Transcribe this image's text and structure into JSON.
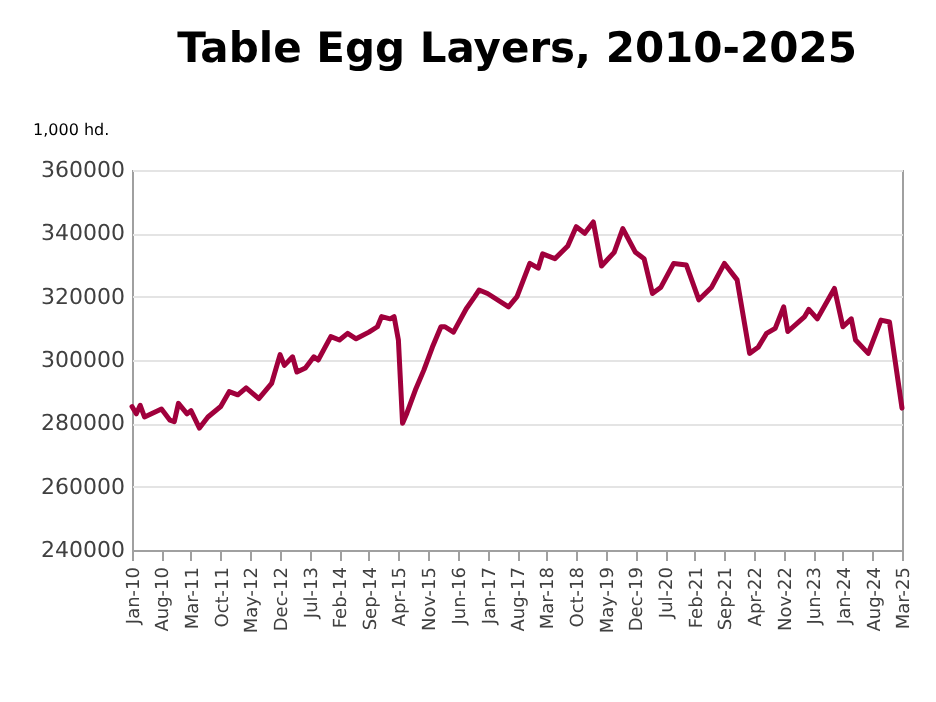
{
  "chart_data": {
    "type": "line",
    "title": "Table Egg Layers, 2010-2025",
    "ylabel": "1,000 hd.",
    "x": [
      "2010-01",
      "2010-02",
      "2010-03",
      "2010-04",
      "2010-08",
      "2010-10",
      "2010-11",
      "2010-12",
      "2011-02",
      "2011-03",
      "2011-05",
      "2011-07",
      "2011-10",
      "2011-12",
      "2012-02",
      "2012-04",
      "2012-07",
      "2012-10",
      "2012-12",
      "2013-01",
      "2013-03",
      "2013-04",
      "2013-06",
      "2013-08",
      "2013-09",
      "2013-12",
      "2014-02",
      "2014-04",
      "2014-06",
      "2014-09",
      "2014-11",
      "2014-12",
      "2015-02",
      "2015-03",
      "2015-04",
      "2015-05",
      "2015-06",
      "2015-08",
      "2015-10",
      "2015-12",
      "2016-02",
      "2016-03",
      "2016-05",
      "2016-08",
      "2016-10",
      "2016-11",
      "2017-01",
      "2017-06",
      "2017-08",
      "2017-11",
      "2018-01",
      "2018-02",
      "2018-05",
      "2018-08",
      "2018-10",
      "2018-12",
      "2019-02",
      "2019-04",
      "2019-07",
      "2019-09",
      "2019-12",
      "2020-02",
      "2020-04",
      "2020-06",
      "2020-09",
      "2020-12",
      "2021-03",
      "2021-06",
      "2021-09",
      "2021-12",
      "2022-03",
      "2022-05",
      "2022-07",
      "2022-09",
      "2022-11",
      "2022-12",
      "2023-04",
      "2023-05",
      "2023-07",
      "2023-11",
      "2024-01",
      "2024-03",
      "2024-04",
      "2024-07",
      "2024-10",
      "2024-12",
      "2025-03"
    ],
    "series": [
      {
        "color": "#a0003c",
        "values": [
          285300,
          283000,
          285700,
          282000,
          284500,
          281000,
          280500,
          286300,
          283000,
          284000,
          278500,
          282000,
          285300,
          290000,
          289000,
          291200,
          287800,
          292600,
          301700,
          298300,
          301000,
          296200,
          297500,
          301000,
          300000,
          307400,
          306300,
          308400,
          306700,
          308800,
          310500,
          313700,
          313000,
          313700,
          306300,
          280000,
          283200,
          290500,
          296800,
          304000,
          310500,
          310500,
          308800,
          316200,
          320000,
          322100,
          321000,
          316800,
          320000,
          330500,
          329000,
          333500,
          332000,
          336000,
          342100,
          340000,
          343600,
          329700,
          334000,
          341500,
          334000,
          332000,
          321000,
          323000,
          330500,
          330000,
          319000,
          323000,
          330500,
          325300,
          302100,
          304000,
          308400,
          310000,
          316800,
          309000,
          313700,
          316000,
          313000,
          322600,
          310500,
          313000,
          306300,
          302100,
          312600,
          312000,
          284800
        ]
      }
    ],
    "ylim": [
      240000,
      360000
    ],
    "yticks": [
      240000,
      260000,
      280000,
      300000,
      320000,
      340000,
      360000
    ],
    "xlim": [
      "2010-01",
      "2025-03"
    ],
    "xticks": [
      {
        "value": "2010-01",
        "label": "Jan-10"
      },
      {
        "value": "2010-08",
        "label": "Aug-10"
      },
      {
        "value": "2011-03",
        "label": "Mar-11"
      },
      {
        "value": "2011-10",
        "label": "Oct-11"
      },
      {
        "value": "2012-05",
        "label": "May-12"
      },
      {
        "value": "2012-12",
        "label": "Dec-12"
      },
      {
        "value": "2013-07",
        "label": "Jul-13"
      },
      {
        "value": "2014-02",
        "label": "Feb-14"
      },
      {
        "value": "2014-09",
        "label": "Sep-14"
      },
      {
        "value": "2015-04",
        "label": "Apr-15"
      },
      {
        "value": "2015-11",
        "label": "Nov-15"
      },
      {
        "value": "2016-06",
        "label": "Jun-16"
      },
      {
        "value": "2017-01",
        "label": "Jan-17"
      },
      {
        "value": "2017-08",
        "label": "Aug-17"
      },
      {
        "value": "2018-03",
        "label": "Mar-18"
      },
      {
        "value": "2018-10",
        "label": "Oct-18"
      },
      {
        "value": "2019-05",
        "label": "May-19"
      },
      {
        "value": "2019-12",
        "label": "Dec-19"
      },
      {
        "value": "2020-07",
        "label": "Jul-20"
      },
      {
        "value": "2021-02",
        "label": "Feb-21"
      },
      {
        "value": "2021-09",
        "label": "Sep-21"
      },
      {
        "value": "2022-04",
        "label": "Apr-22"
      },
      {
        "value": "2022-11",
        "label": "Nov-22"
      },
      {
        "value": "2023-06",
        "label": "Jun-23"
      },
      {
        "value": "2024-01",
        "label": "Jan-24"
      },
      {
        "value": "2024-08",
        "label": "Aug-24"
      },
      {
        "value": "2025-03",
        "label": "Mar-25"
      }
    ],
    "grid": "y",
    "legend": false,
    "marker": "none",
    "line_style": "solid"
  }
}
